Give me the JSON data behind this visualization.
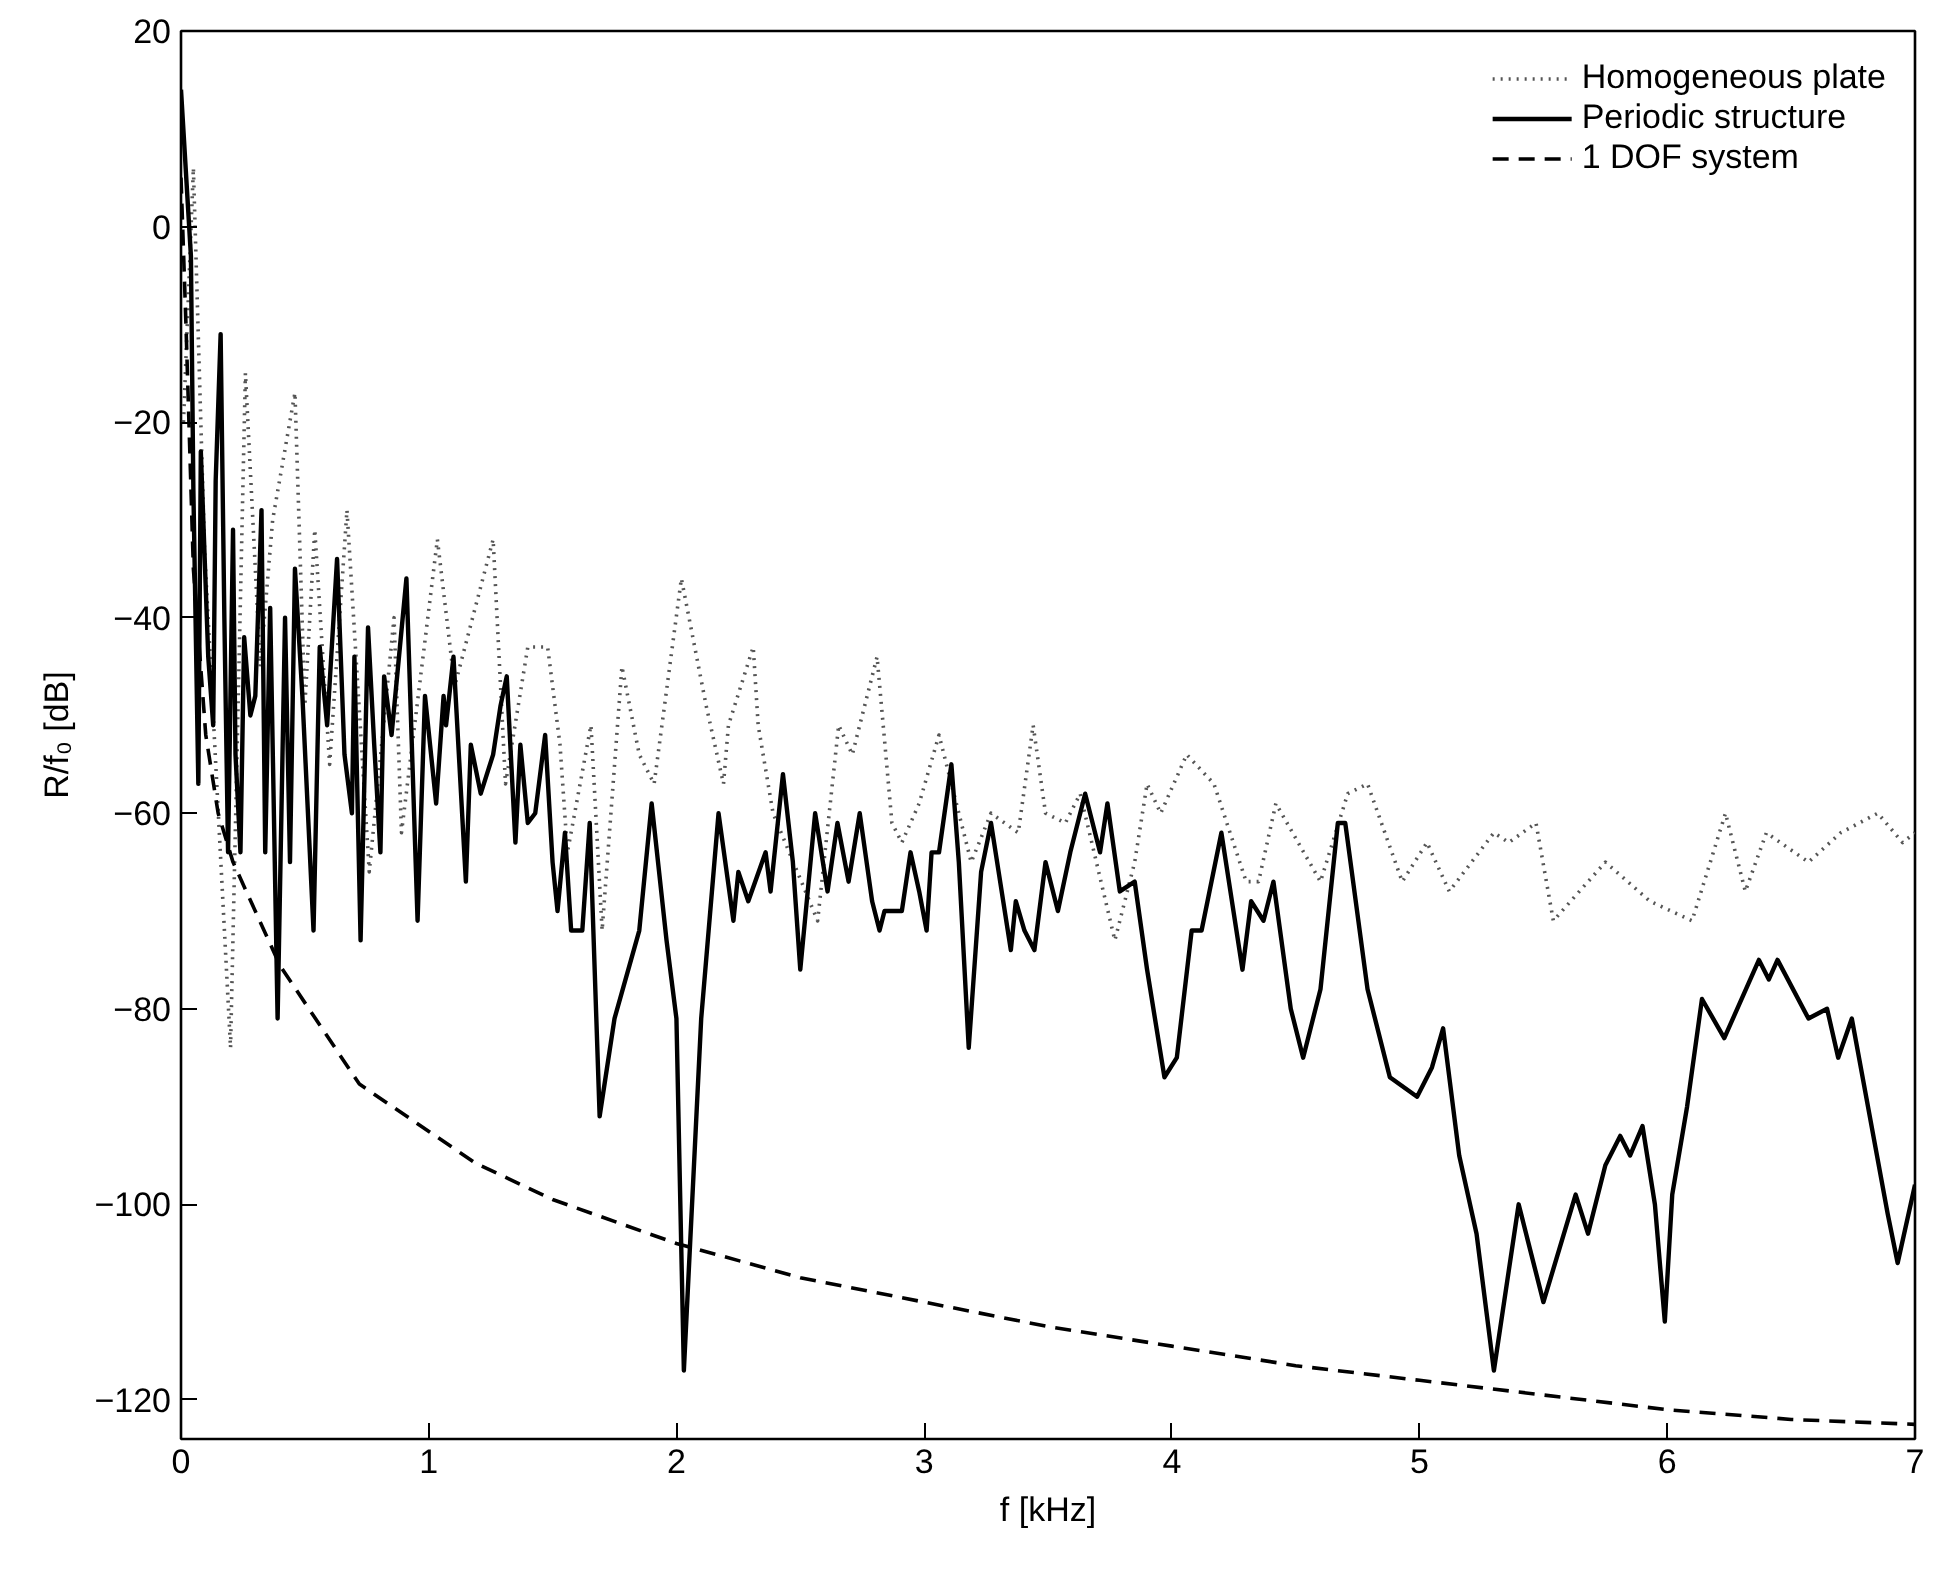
{
  "chart_data": {
    "type": "line",
    "xlabel": "f [kHz]",
    "ylabel": "R/f₀ [dB]",
    "xlim": [
      0,
      7
    ],
    "ylim": [
      -124,
      20
    ],
    "xticks": [
      0,
      1,
      2,
      3,
      4,
      5,
      6,
      7
    ],
    "yticks": [
      -120,
      -100,
      -80,
      -60,
      -40,
      -20,
      0,
      20
    ],
    "grid": false,
    "legend": "top right",
    "series": [
      {
        "name": "Homogeneous plate",
        "color": "#555555",
        "line_style": "dotted",
        "x": [
          0.01,
          0.05,
          0.095,
          0.2,
          0.26,
          0.32,
          0.37,
          0.46,
          0.5,
          0.54,
          0.6,
          0.67,
          0.76,
          0.86,
          0.89,
          1.035,
          1.105,
          1.26,
          1.31,
          1.4,
          1.48,
          1.53,
          1.56,
          1.655,
          1.7,
          1.78,
          1.85,
          1.91,
          2.02,
          2.12,
          2.19,
          2.21,
          2.31,
          2.33,
          2.39,
          2.57,
          2.655,
          2.71,
          2.81,
          2.87,
          2.91,
          2.98,
          3.06,
          3.19,
          3.27,
          3.38,
          3.44,
          3.49,
          3.57,
          3.63,
          3.77,
          3.85,
          3.9,
          3.955,
          4.06,
          4.17,
          4.3,
          4.35,
          4.42,
          4.6,
          4.71,
          4.79,
          4.93,
          5.03,
          5.12,
          5.3,
          5.36,
          5.47,
          5.54,
          5.75,
          5.93,
          6.1,
          6.235,
          6.315,
          6.4,
          6.57,
          6.7,
          6.85,
          6.95,
          7.0
        ],
        "values": [
          -20,
          6,
          -33,
          -84,
          -15,
          -45,
          -30,
          -17,
          -49,
          -31,
          -55,
          -29,
          -66,
          -40,
          -62,
          -32,
          -47,
          -32,
          -57,
          -43,
          -43,
          -53,
          -64,
          -51,
          -72,
          -45,
          -54,
          -57,
          -36,
          -49,
          -57,
          -51,
          -43,
          -51,
          -60,
          -71,
          -51,
          -54,
          -44,
          -61,
          -63,
          -59,
          -52,
          -65,
          -60,
          -62,
          -51,
          -60,
          -61,
          -58,
          -73,
          -65,
          -57,
          -60,
          -54,
          -57,
          -67,
          -67,
          -59,
          -67,
          -58,
          -57,
          -67,
          -63,
          -68,
          -62,
          -63,
          -61,
          -71,
          -65,
          -69,
          -71,
          -60,
          -68,
          -62,
          -65,
          -62,
          -60,
          -63,
          -62
        ]
      },
      {
        "name": "Periodic structure",
        "color": "#000000",
        "line_style": "solid",
        "x": [
          0.0,
          0.04,
          0.05,
          0.07,
          0.08,
          0.11,
          0.13,
          0.14,
          0.16,
          0.175,
          0.19,
          0.21,
          0.22,
          0.24,
          0.255,
          0.28,
          0.3,
          0.325,
          0.34,
          0.36,
          0.39,
          0.42,
          0.44,
          0.46,
          0.49,
          0.535,
          0.56,
          0.59,
          0.63,
          0.66,
          0.69,
          0.7,
          0.725,
          0.755,
          0.78,
          0.805,
          0.82,
          0.85,
          0.91,
          0.955,
          0.985,
          1.03,
          1.06,
          1.07,
          1.1,
          1.15,
          1.17,
          1.21,
          1.26,
          1.29,
          1.315,
          1.35,
          1.37,
          1.4,
          1.43,
          1.47,
          1.5,
          1.52,
          1.55,
          1.575,
          1.62,
          1.65,
          1.69,
          1.75,
          1.85,
          1.9,
          1.96,
          2.0,
          2.03,
          2.1,
          2.17,
          2.23,
          2.25,
          2.29,
          2.36,
          2.38,
          2.43,
          2.47,
          2.5,
          2.56,
          2.61,
          2.65,
          2.695,
          2.74,
          2.79,
          2.82,
          2.84,
          2.91,
          2.945,
          2.98,
          3.01,
          3.03,
          3.06,
          3.11,
          3.14,
          3.18,
          3.23,
          3.27,
          3.35,
          3.37,
          3.405,
          3.445,
          3.49,
          3.54,
          3.59,
          3.65,
          3.69,
          3.71,
          3.74,
          3.79,
          3.85,
          3.9,
          3.97,
          4.02,
          4.08,
          4.12,
          4.2,
          4.285,
          4.32,
          4.37,
          4.41,
          4.48,
          4.53,
          4.6,
          4.67,
          4.7,
          4.79,
          4.88,
          4.99,
          5.05,
          5.095,
          5.16,
          5.23,
          5.3,
          5.4,
          5.5,
          5.63,
          5.68,
          5.75,
          5.81,
          5.85,
          5.9,
          5.95,
          5.99,
          6.02,
          6.08,
          6.14,
          6.23,
          6.37,
          6.41,
          6.445,
          6.57,
          6.645,
          6.69,
          6.745,
          6.89,
          6.93,
          7.0
        ],
        "values": [
          14,
          -3,
          -27,
          -57,
          -23,
          -44,
          -51,
          -26,
          -11,
          -40,
          -64,
          -31,
          -54,
          -64,
          -42,
          -50,
          -48,
          -29,
          -64,
          -39,
          -81,
          -40,
          -65,
          -35,
          -48,
          -72,
          -43,
          -51,
          -34,
          -54,
          -60,
          -44,
          -73,
          -41,
          -53,
          -64,
          -46,
          -52,
          -36,
          -71,
          -48,
          -59,
          -48,
          -51,
          -44,
          -67,
          -53,
          -58,
          -54,
          -49,
          -46,
          -63,
          -53,
          -61,
          -60,
          -52,
          -65,
          -70,
          -62,
          -72,
          -72,
          -61,
          -91,
          -81,
          -72,
          -59,
          -73,
          -81,
          -117,
          -81,
          -60,
          -71,
          -66,
          -69,
          -64,
          -68,
          -56,
          -65,
          -76,
          -60,
          -68,
          -61,
          -67,
          -60,
          -69,
          -72,
          -70,
          -70,
          -64,
          -68,
          -72,
          -64,
          -64,
          -55,
          -65,
          -84,
          -66,
          -61,
          -74,
          -69,
          -72,
          -74,
          -65,
          -70,
          -64,
          -58,
          -62,
          -64,
          -59,
          -68,
          -67,
          -76,
          -87,
          -85,
          -72,
          -72,
          -62,
          -76,
          -69,
          -71,
          -67,
          -80,
          -85,
          -78,
          -61,
          -61,
          -78,
          -87,
          -89,
          -86,
          -82,
          -95,
          -103,
          -117,
          -100,
          -110,
          -99,
          -103,
          -96,
          -93,
          -95,
          -92,
          -100,
          -112,
          -99,
          -90,
          -79,
          -83,
          -75,
          -77,
          -75,
          -81,
          -80,
          -85,
          -81,
          -101,
          -106,
          -98
        ]
      },
      {
        "name": "1 DOF system",
        "color": "#000000",
        "line_style": "dashed",
        "x": [
          0.0,
          0.02,
          0.05,
          0.1,
          0.15,
          0.21,
          0.4,
          0.72,
          1.19,
          1.5,
          2.0,
          2.5,
          3.0,
          3.5,
          4.0,
          4.5,
          5.0,
          5.5,
          6.0,
          6.5,
          7.0
        ],
        "values": [
          5,
          -10,
          -35,
          -52,
          -60,
          -65,
          -75.6,
          -87.7,
          -95.8,
          -99.5,
          -104,
          -107.5,
          -110,
          -112.5,
          -114.5,
          -116.5,
          -118,
          -119.5,
          -121,
          -122,
          -122.5
        ]
      }
    ]
  }
}
